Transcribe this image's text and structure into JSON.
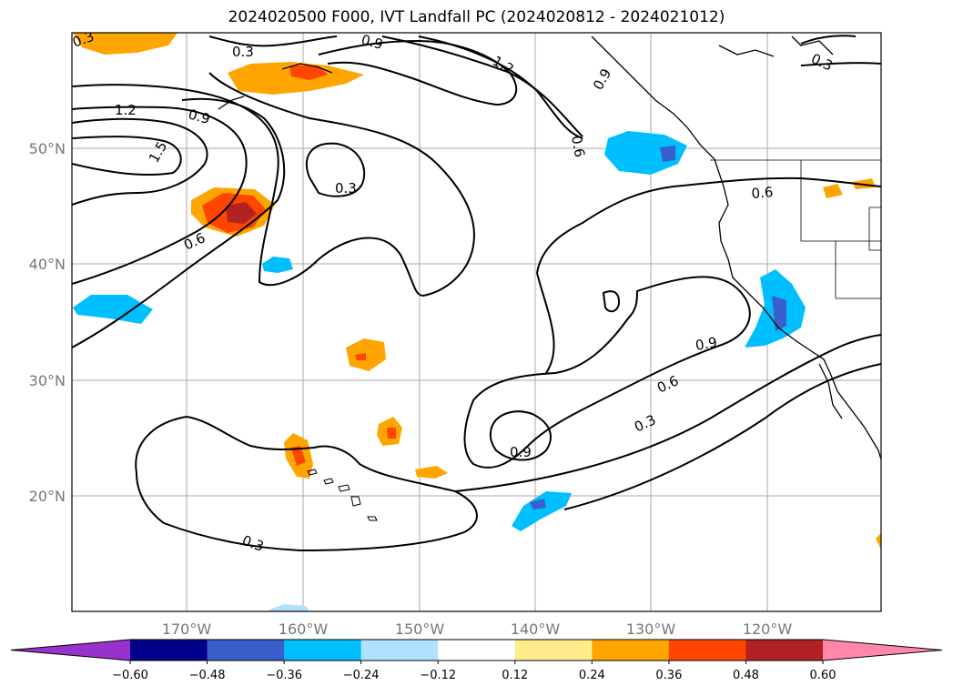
{
  "title": "2024020500 F000, IVT Landfall PC (2024020812 - 2024021012)",
  "axes": {
    "lat_labels": [
      "50°N",
      "40°N",
      "30°N",
      "20°N"
    ],
    "lon_labels": [
      "170°W",
      "160°W",
      "150°W",
      "140°W",
      "130°W",
      "120°W"
    ]
  },
  "contour_labels": [
    "0.3",
    "0.3",
    "0.3",
    "0.3",
    "0.3",
    "0.3",
    "0.6",
    "0.6",
    "0.6",
    "0.6",
    "0.9",
    "0.9",
    "0.9",
    "0.9",
    "0.9",
    "1.2",
    "1.2",
    "1.5"
  ],
  "colorbar": {
    "ticks": [
      "−0.60",
      "−0.48",
      "−0.36",
      "−0.24",
      "−0.12",
      "0.12",
      "0.24",
      "0.36",
      "0.48",
      "0.60"
    ],
    "colors": [
      "#9932cc",
      "#00008b",
      "#3a5fcd",
      "#00bfff",
      "#b0e2ff",
      "#ffffff",
      "#ffec8b",
      "#ffa500",
      "#ff4500",
      "#b22222",
      "#ff88aa"
    ]
  }
}
